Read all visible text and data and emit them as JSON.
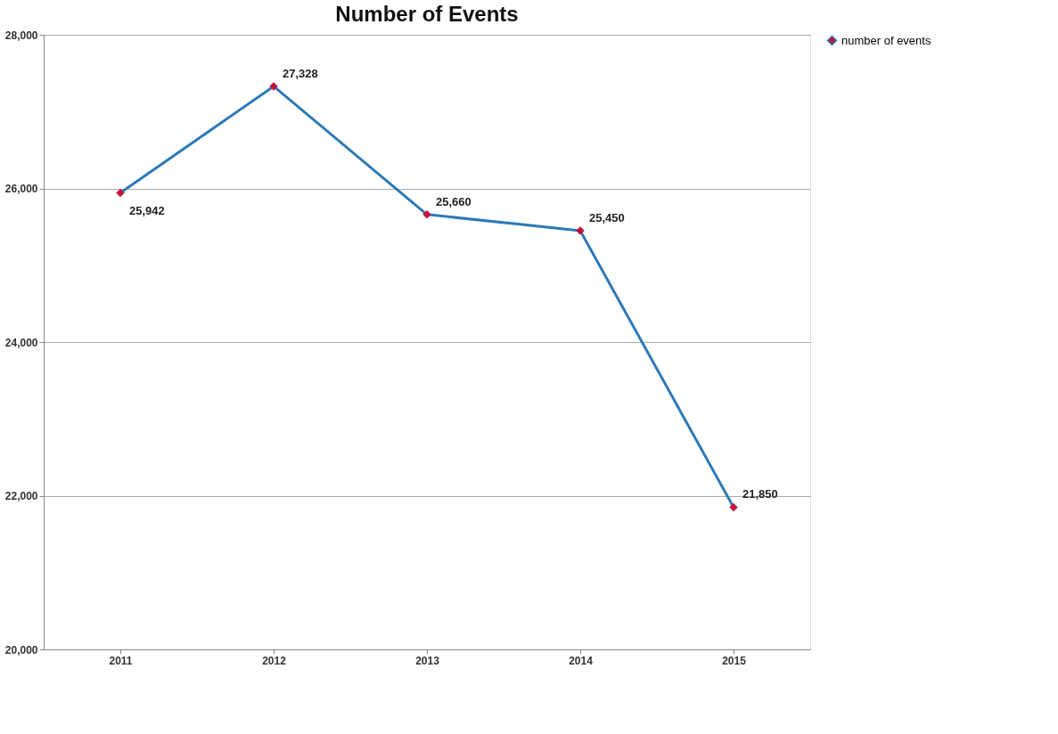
{
  "chart_data": {
    "type": "line",
    "title": "Number of Events",
    "categories": [
      "2011",
      "2012",
      "2013",
      "2014",
      "2015"
    ],
    "series": [
      {
        "name": "number of events",
        "color": "#2e7ab8",
        "values": [
          25942,
          27328,
          25660,
          25450,
          21850
        ],
        "value_labels": [
          "25,942",
          "27,328",
          "25,660",
          "25,450",
          "21,850"
        ]
      }
    ],
    "ylim": [
      20000,
      28000
    ],
    "yticks": [
      {
        "value": 20000,
        "label": "20,000"
      },
      {
        "value": 22000,
        "label": "22,000"
      },
      {
        "value": 24000,
        "label": "24,000"
      },
      {
        "value": 26000,
        "label": "26,000"
      },
      {
        "value": 28000,
        "label": "28,000"
      }
    ],
    "grid": "y",
    "legend": "right",
    "marker": "diamond"
  }
}
